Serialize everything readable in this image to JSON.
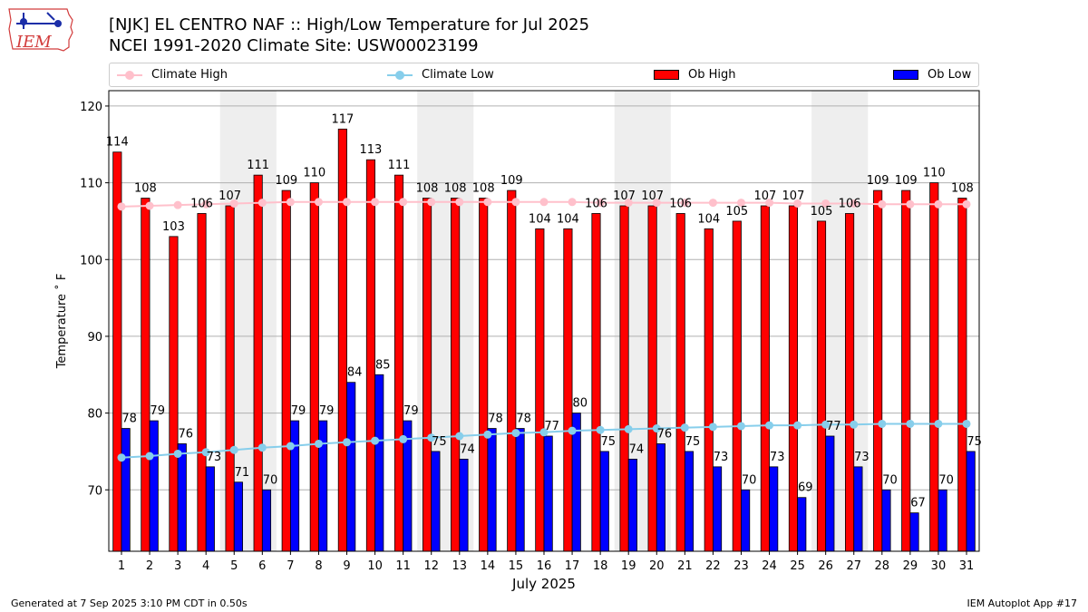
{
  "header": {
    "title_line1": "[NJK] EL CENTRO NAF :: High/Low Temperature for Jul 2025",
    "title_line2": "NCEI 1991-2020 Climate Site: USW00023199"
  },
  "logo": {
    "text": "IEM"
  },
  "footer": {
    "left": "Generated at 7 Sep 2025 3:10 PM CDT in 0.50s",
    "right": "IEM Autoplot App #17"
  },
  "colors": {
    "ob_high": "#ff0000",
    "ob_low": "#0000ff",
    "climate_high": "#ffc0cb",
    "climate_low": "#87ceeb",
    "weekend_band": "#eeeeee"
  },
  "chart_data": {
    "type": "bar",
    "xlabel": "July 2025",
    "ylabel": "Temperature ˚ F",
    "ylim": [
      62,
      122
    ],
    "yticks": [
      70,
      80,
      90,
      100,
      110,
      120
    ],
    "grid": "horizontal",
    "legend_position": "top",
    "categories": [
      "1",
      "2",
      "3",
      "4",
      "5",
      "6",
      "7",
      "8",
      "9",
      "10",
      "11",
      "12",
      "13",
      "14",
      "15",
      "16",
      "17",
      "18",
      "19",
      "20",
      "21",
      "22",
      "23",
      "24",
      "25",
      "26",
      "27",
      "28",
      "29",
      "30",
      "31"
    ],
    "weekend_days": [
      [
        5,
        6
      ],
      [
        12,
        13
      ],
      [
        19,
        20
      ],
      [
        26,
        27
      ]
    ],
    "series": [
      {
        "name": "Ob High",
        "kind": "bar",
        "values": [
          114,
          108,
          103,
          106,
          107,
          111,
          109,
          110,
          117,
          113,
          111,
          108,
          108,
          108,
          109,
          104,
          104,
          106,
          107,
          107,
          106,
          104,
          105,
          107,
          107,
          105,
          106,
          109,
          109,
          110,
          108
        ]
      },
      {
        "name": "Ob Low",
        "kind": "bar",
        "values": [
          78,
          79,
          76,
          73,
          71,
          70,
          79,
          79,
          84,
          85,
          79,
          75,
          74,
          78,
          78,
          77,
          80,
          75,
          74,
          76,
          75,
          73,
          70,
          73,
          69,
          77,
          73,
          70,
          67,
          70,
          75
        ]
      },
      {
        "name": "Climate High",
        "kind": "line",
        "values": [
          106.9,
          107.0,
          107.1,
          107.2,
          107.3,
          107.4,
          107.5,
          107.5,
          107.5,
          107.5,
          107.5,
          107.5,
          107.5,
          107.5,
          107.5,
          107.5,
          107.5,
          107.4,
          107.4,
          107.4,
          107.4,
          107.4,
          107.4,
          107.4,
          107.3,
          107.3,
          107.3,
          107.2,
          107.2,
          107.2,
          107.2
        ]
      },
      {
        "name": "Climate Low",
        "kind": "line",
        "values": [
          74.2,
          74.4,
          74.7,
          74.9,
          75.2,
          75.5,
          75.7,
          76.0,
          76.2,
          76.4,
          76.6,
          76.8,
          77.0,
          77.2,
          77.4,
          77.5,
          77.7,
          77.8,
          77.9,
          78.0,
          78.1,
          78.2,
          78.3,
          78.4,
          78.4,
          78.5,
          78.5,
          78.6,
          78.6,
          78.6,
          78.6
        ]
      }
    ]
  }
}
